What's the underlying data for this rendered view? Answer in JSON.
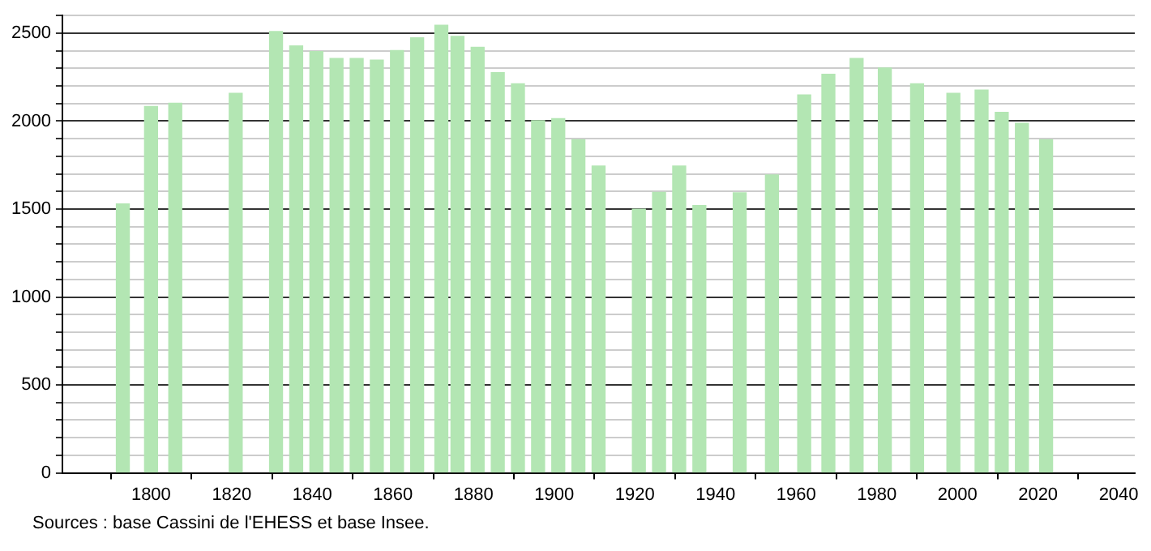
{
  "chart_data": {
    "type": "bar",
    "x": [
      1793,
      1800,
      1806,
      1821,
      1831,
      1836,
      1841,
      1846,
      1851,
      1856,
      1861,
      1866,
      1872,
      1876,
      1881,
      1886,
      1891,
      1896,
      1901,
      1906,
      1911,
      1921,
      1926,
      1931,
      1936,
      1946,
      1954,
      1962,
      1968,
      1975,
      1982,
      1990,
      1999,
      2006,
      2011,
      2016,
      2022
    ],
    "values": [
      1529,
      2083,
      2101,
      2158,
      2509,
      2428,
      2395,
      2356,
      2356,
      2347,
      2401,
      2473,
      2545,
      2482,
      2419,
      2275,
      2212,
      2002,
      2014,
      1894,
      1745,
      1499,
      1595,
      1745,
      1520,
      1592,
      1694,
      2149,
      2266,
      2356,
      2302,
      2212,
      2158,
      2176,
      2050,
      1988,
      1894
    ],
    "color": "#b3e6b3",
    "xlim": [
      1778,
      2044
    ],
    "xticks": [
      1800,
      1820,
      1840,
      1860,
      1880,
      1900,
      1920,
      1940,
      1960,
      1980,
      2000,
      2020,
      2040
    ],
    "ylim": [
      0,
      2600
    ],
    "yticks": [
      0,
      {
        "value": 100,
        "label": null
      },
      {
        "value": 200,
        "label": null
      },
      {
        "value": 300,
        "label": null
      },
      {
        "value": 400,
        "label": null
      },
      500,
      {
        "value": 600,
        "label": null
      },
      {
        "value": 700,
        "label": null
      },
      {
        "value": 800,
        "label": null
      },
      {
        "value": 900,
        "label": null
      },
      1000,
      {
        "value": 1100,
        "label": null
      },
      {
        "value": 1200,
        "label": null
      },
      {
        "value": 1300,
        "label": null
      },
      {
        "value": 1400,
        "label": null
      },
      1500,
      {
        "value": 1600,
        "label": null
      },
      {
        "value": 1700,
        "label": null
      },
      {
        "value": 1800,
        "label": null
      },
      {
        "value": 1900,
        "label": null
      },
      2000,
      {
        "value": 2100,
        "label": null
      },
      {
        "value": 2200,
        "label": null
      },
      {
        "value": 2300,
        "label": null
      },
      {
        "value": 2400,
        "label": null
      },
      2500,
      {
        "value": 2600,
        "label": null
      }
    ],
    "grid": "y",
    "annotations": [
      "Sources : base Cassini de l'EHESS et base Insee."
    ]
  }
}
